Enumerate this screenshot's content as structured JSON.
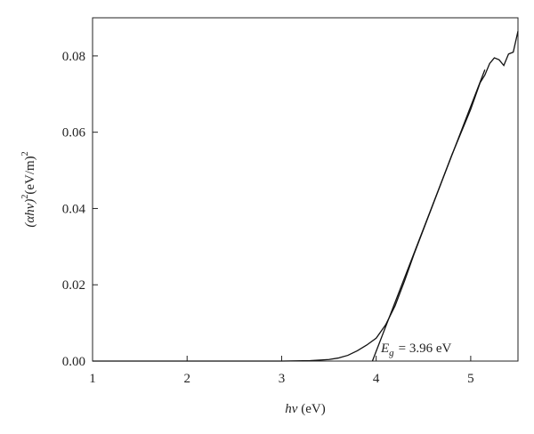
{
  "chart_data": {
    "type": "line",
    "xlabel": {
      "symbol": "hν",
      "unit": "(eV)"
    },
    "ylabel": {
      "symbol": "(αhν)",
      "power": "2",
      "unit": "(eV/m)",
      "unit_power": "2"
    },
    "annotation": {
      "symbol": "E",
      "subscript": "g",
      "text": "= 3.96 eV"
    },
    "xlim": [
      1,
      5.5
    ],
    "xticks": [
      1,
      2,
      3,
      4,
      5
    ],
    "ylim": [
      0,
      0.09
    ],
    "yticks": [
      {
        "value": 0,
        "label": "0.00"
      },
      0.02,
      0.04,
      0.06,
      0.08
    ],
    "grid": false,
    "series": [
      {
        "color": "#111111",
        "x": [
          1,
          1.5,
          2,
          2.5,
          3,
          3.3,
          3.5,
          3.6,
          3.7,
          3.8,
          3.9,
          4.0,
          4.1,
          4.2,
          4.3,
          4.4,
          4.6,
          4.8,
          5.0,
          5.1,
          5.15,
          5.2,
          5.25,
          5.3,
          5.35,
          5.4,
          5.45,
          5.5
        ],
        "values": [
          0,
          0,
          0,
          0,
          0,
          0.0001,
          0.0004,
          0.0008,
          0.0015,
          0.0027,
          0.0042,
          0.006,
          0.0095,
          0.0145,
          0.021,
          0.028,
          0.041,
          0.054,
          0.066,
          0.073,
          0.075,
          0.078,
          0.0795,
          0.079,
          0.0775,
          0.0805,
          0.081,
          0.0865
        ]
      },
      {
        "color": "#111111",
        "x": [
          3.96,
          5.15
        ],
        "values": [
          0,
          0.0764
        ]
      }
    ]
  }
}
